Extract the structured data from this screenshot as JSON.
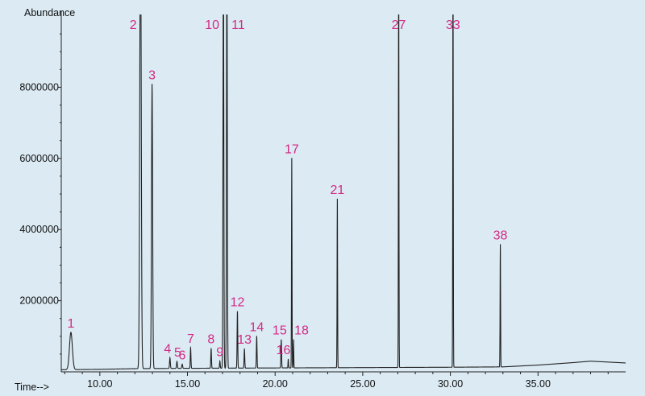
{
  "chart_data": {
    "type": "line",
    "title": "",
    "ylabel": "Abundance",
    "xlabel": "Time-->",
    "xlim": [
      7.8,
      40.0
    ],
    "ylim": [
      0,
      10000000
    ],
    "xticks": [
      10.0,
      15.0,
      20.0,
      25.0,
      30.0,
      35.0
    ],
    "xtick_labels": [
      "10.00",
      "15.00",
      "20.00",
      "25.00",
      "30.00",
      "35.00"
    ],
    "yticks": [
      2000000,
      4000000,
      6000000,
      8000000
    ],
    "ytick_labels": [
      "2000000",
      "4000000",
      "6000000",
      "8000000"
    ],
    "grid": false,
    "colors": {
      "background": "#dbeaf3",
      "trace": "#222222",
      "peak_label": "#d42a84",
      "axis": "#222222"
    },
    "peaks": [
      {
        "label": "1",
        "x": 8.35,
        "y": 1050000,
        "width": 0.18
      },
      {
        "label": "2",
        "x": 12.32,
        "y": 13000000,
        "width": 0.09
      },
      {
        "label": "3",
        "x": 12.98,
        "y": 8000000,
        "width": 0.07
      },
      {
        "label": "4",
        "x": 14.0,
        "y": 300000,
        "width": 0.05
      },
      {
        "label": "5",
        "x": 14.4,
        "y": 200000,
        "width": 0.05
      },
      {
        "label": "6",
        "x": 14.7,
        "y": 120000,
        "width": 0.05
      },
      {
        "label": "7",
        "x": 15.18,
        "y": 580000,
        "width": 0.04
      },
      {
        "label": "8",
        "x": 16.35,
        "y": 560000,
        "width": 0.04
      },
      {
        "label": "9",
        "x": 16.85,
        "y": 200000,
        "width": 0.04
      },
      {
        "label": "10",
        "x": 17.05,
        "y": 12000000,
        "width": 0.05
      },
      {
        "label": "11",
        "x": 17.25,
        "y": 12000000,
        "width": 0.05
      },
      {
        "label": "12",
        "x": 17.85,
        "y": 1600000,
        "width": 0.04
      },
      {
        "label": "13",
        "x": 18.25,
        "y": 550000,
        "width": 0.04
      },
      {
        "label": "14",
        "x": 18.95,
        "y": 900000,
        "width": 0.04
      },
      {
        "label": "15",
        "x": 20.35,
        "y": 800000,
        "width": 0.04
      },
      {
        "label": "16",
        "x": 20.75,
        "y": 250000,
        "width": 0.03
      },
      {
        "label": "17",
        "x": 20.95,
        "y": 5900000,
        "width": 0.03
      },
      {
        "label": "18",
        "x": 21.05,
        "y": 800000,
        "width": 0.03
      },
      {
        "label": "21",
        "x": 23.55,
        "y": 4750000,
        "width": 0.03
      },
      {
        "label": "27",
        "x": 27.05,
        "y": 12000000,
        "width": 0.03
      },
      {
        "label": "33",
        "x": 30.15,
        "y": 12000000,
        "width": 0.03
      },
      {
        "label": "38",
        "x": 32.85,
        "y": 3450000,
        "width": 0.03
      }
    ],
    "baseline": [
      [
        7.8,
        60000
      ],
      [
        10,
        70000
      ],
      [
        12,
        90000
      ],
      [
        15,
        100000
      ],
      [
        20,
        110000
      ],
      [
        25,
        120000
      ],
      [
        30,
        130000
      ],
      [
        33,
        140000
      ],
      [
        35,
        190000
      ],
      [
        37,
        260000
      ],
      [
        38,
        300000
      ],
      [
        40,
        250000
      ]
    ]
  }
}
